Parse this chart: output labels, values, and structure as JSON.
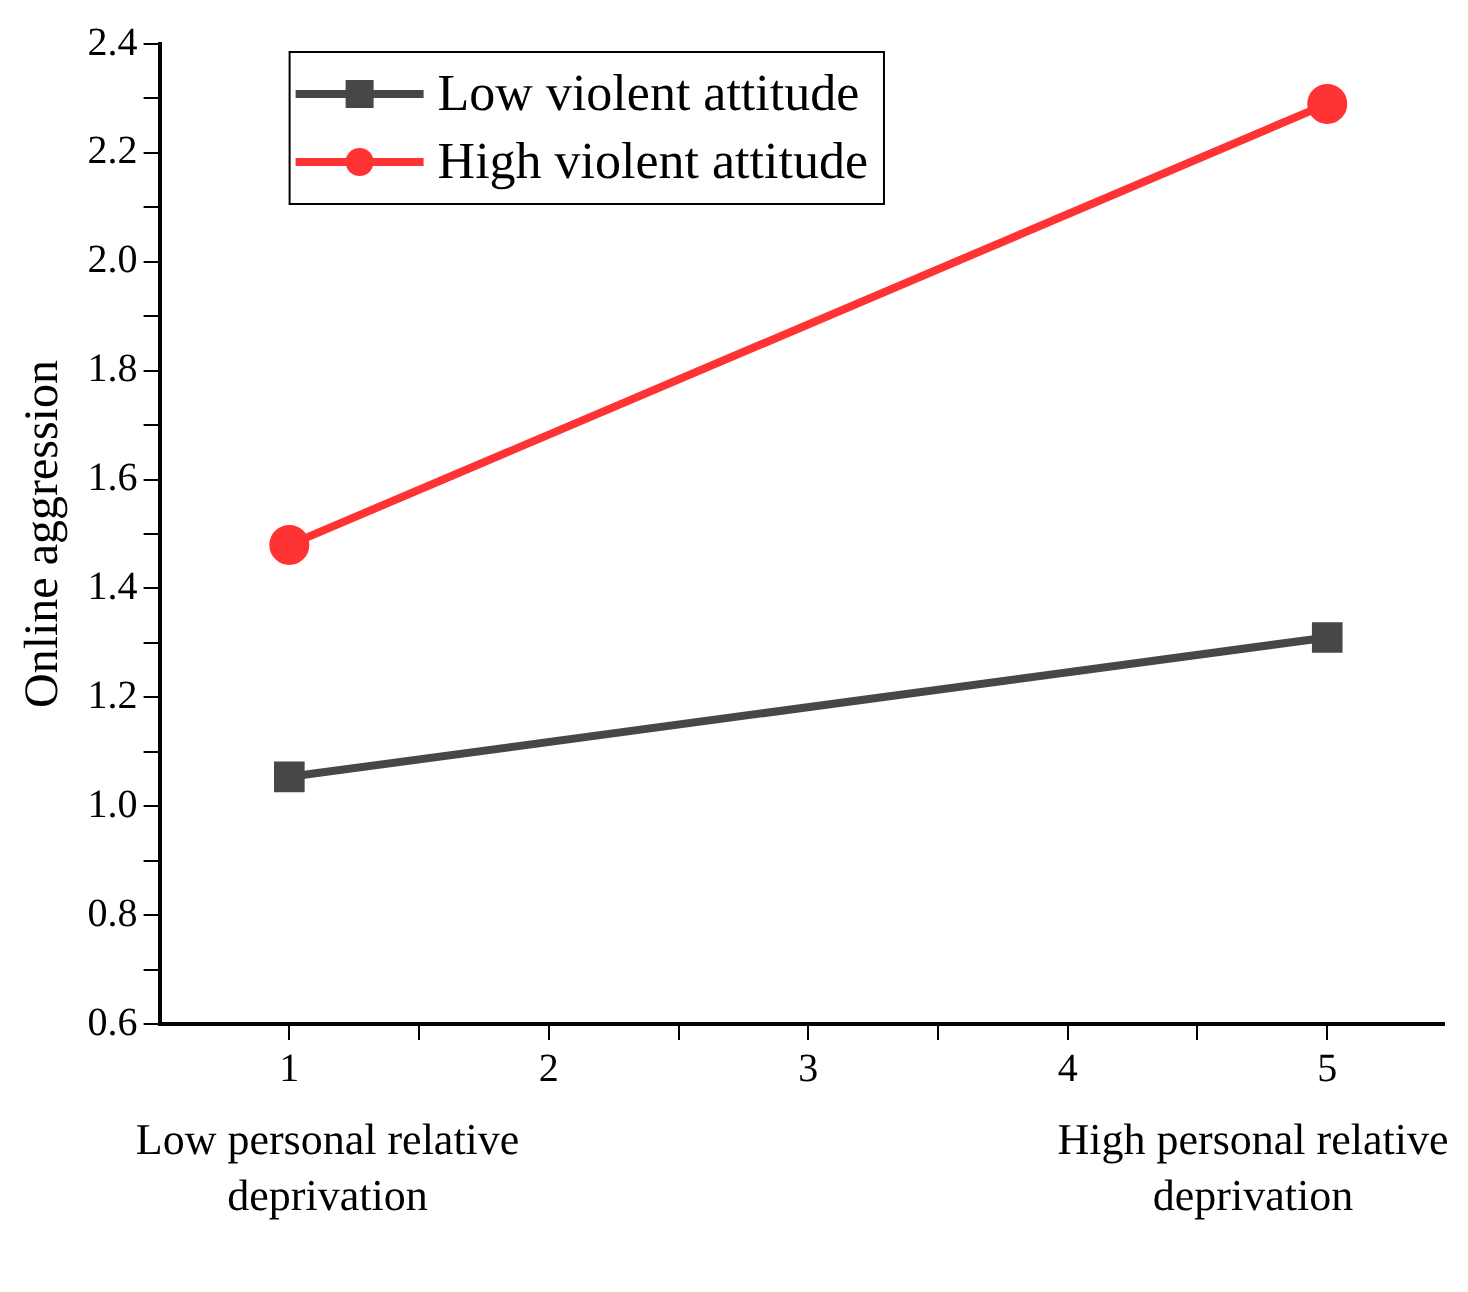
{
  "chart_data": {
    "type": "line",
    "ylabel": "Online aggression",
    "x": [
      1,
      5
    ],
    "series": [
      {
        "name": "Low violent attitude",
        "color": "#474747",
        "marker": "square",
        "values": [
          1.054,
          1.31
        ]
      },
      {
        "name": "High violent attitude",
        "color": "#ff3333",
        "marker": "circle",
        "values": [
          1.48,
          2.29
        ]
      }
    ],
    "xlim": [
      0.5,
      5.45
    ],
    "xticks": [
      1,
      {
        "value": 1.5,
        "label": null
      },
      2,
      {
        "value": 2.5,
        "label": null
      },
      3,
      {
        "value": 3.5,
        "label": null
      },
      4,
      {
        "value": 4.5,
        "label": null
      },
      5
    ],
    "ylim": [
      0.6,
      2.4
    ],
    "yticks": [
      0.6,
      {
        "value": 0.7,
        "label": null
      },
      0.8,
      {
        "value": 0.9,
        "label": null
      },
      {
        "value": 1,
        "label": "1.0"
      },
      {
        "value": 1.1,
        "label": null
      },
      1.2,
      {
        "value": 1.3,
        "label": null
      },
      1.4,
      {
        "value": 1.5,
        "label": null
      },
      1.6,
      {
        "value": 1.7,
        "label": null
      },
      1.8,
      {
        "value": 1.9,
        "label": null
      },
      {
        "value": 2,
        "label": "2.0"
      },
      {
        "value": 2.1,
        "label": null
      },
      2.2,
      {
        "value": 2.3,
        "label": null
      },
      2.4
    ],
    "annotations": [
      "Low personal relative deprivation",
      "High personal relative deprivation"
    ],
    "grid": false,
    "legend": "top left",
    "line_style": "solid"
  }
}
